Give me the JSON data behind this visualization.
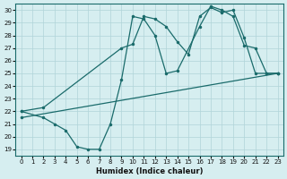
{
  "xlabel": "Humidex (Indice chaleur)",
  "bg_color": "#d6eef0",
  "grid_color": "#b0d4d8",
  "line_color": "#1a6b6b",
  "xlim": [
    -0.5,
    23.5
  ],
  "ylim": [
    18.5,
    30.5
  ],
  "xticks": [
    0,
    1,
    2,
    3,
    4,
    5,
    6,
    7,
    8,
    9,
    10,
    11,
    12,
    13,
    14,
    15,
    16,
    17,
    18,
    19,
    20,
    21,
    22,
    23
  ],
  "yticks": [
    19,
    20,
    21,
    22,
    23,
    24,
    25,
    26,
    27,
    28,
    29,
    30
  ],
  "series": [
    {
      "x": [
        0,
        2,
        3,
        4,
        5,
        6,
        7,
        8,
        9,
        10,
        11,
        12,
        13,
        14,
        16,
        17,
        18,
        19,
        20,
        21,
        22,
        23
      ],
      "y": [
        22,
        21.5,
        21,
        20.5,
        19.2,
        19.0,
        19.0,
        21.0,
        24.5,
        29.5,
        29.3,
        28,
        25,
        25.2,
        28.7,
        30.3,
        30.0,
        29.5,
        27.2,
        27.0,
        25.0,
        25.0
      ]
    },
    {
      "x": [
        0,
        2,
        9,
        10,
        11,
        12,
        13,
        14,
        15,
        16,
        17,
        18,
        19,
        20,
        21,
        22,
        23
      ],
      "y": [
        22,
        22.3,
        27.0,
        27.3,
        29.5,
        29.3,
        28.7,
        27.5,
        26.5,
        29.5,
        30.2,
        29.8,
        30.0,
        27.8,
        25.0,
        25.0,
        25.0
      ]
    },
    {
      "x": [
        0,
        23
      ],
      "y": [
        21.5,
        25.0
      ]
    }
  ]
}
